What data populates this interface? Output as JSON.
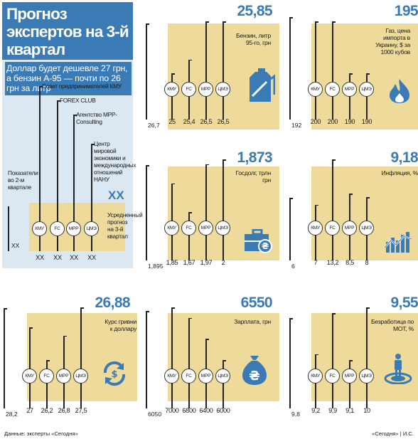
{
  "legend": {
    "title": "Прогноз экспертов на 3-й квартал",
    "subtitle": "Доллар будет дешевле 27 грн, а бензин А-95 — почти по 26 грн за литр",
    "sources": [
      {
        "code": "КМУ",
        "name": "Совет предпринимателей КМУ"
      },
      {
        "code": "FC",
        "name": "FOREX CLUB"
      },
      {
        "code": "MPP",
        "name": "Агентство MPP-Consulting"
      },
      {
        "code": "ЦМЭ",
        "name": "Центр мировой экономики и международных отношений НАНУ"
      }
    ],
    "prev_label": "Показатели во 2-м квартале",
    "prev_value": "XX",
    "avg_value": "XX",
    "avg_note": "Усредненный прогноз на 3-й квартал",
    "values": [
      "XX",
      "XX",
      "XX",
      "XX"
    ]
  },
  "chart_data": [
    {
      "type": "lollipop",
      "title": "Бензин, литр 95-го, грн",
      "forecast": "25,85",
      "prev": "26,7",
      "icon": "fuel-canister-icon",
      "series": [
        {
          "name": "КМУ",
          "value": 25
        },
        {
          "name": "FC",
          "value": 25.4
        },
        {
          "name": "MPP",
          "value": 26.5
        },
        {
          "name": "ЦМЭ",
          "value": 26.5
        }
      ],
      "labels": [
        "25",
        "25,4",
        "26,5",
        "26,5"
      ]
    },
    {
      "type": "lollipop",
      "title": "Газ, цена импорта в Украину, $ за 1000 кубов",
      "forecast": "195",
      "prev": "192",
      "icon": "gas-flame-icon",
      "series": [
        {
          "name": "КМУ",
          "value": 200
        },
        {
          "name": "FC",
          "value": 200
        },
        {
          "name": "MPP",
          "value": 190
        },
        {
          "name": "ЦМЭ",
          "value": 190
        }
      ],
      "labels": [
        "200",
        "200",
        "190",
        "190"
      ]
    },
    {
      "type": "lollipop",
      "title": "Госдолг, трлн грн",
      "forecast": "1,873",
      "prev": "1,895",
      "icon": "briefcase-hryvnia-icon",
      "series": [
        {
          "name": "КМУ",
          "value": 1.85
        },
        {
          "name": "FC",
          "value": 1.67
        },
        {
          "name": "MPP",
          "value": 1.97
        },
        {
          "name": "ЦМЭ",
          "value": 2
        }
      ],
      "labels": [
        "1,85",
        "1,67",
        "1,97",
        "2"
      ]
    },
    {
      "type": "lollipop",
      "title": "Инфляция, %",
      "forecast": "9,18",
      "prev": "6",
      "icon": "inflation-chart-icon",
      "series": [
        {
          "name": "КМУ",
          "value": 7
        },
        {
          "name": "FC",
          "value": 13.2
        },
        {
          "name": "MPP",
          "value": 8.5
        },
        {
          "name": "ЦМЭ",
          "value": 8
        }
      ],
      "labels": [
        "7",
        "13,2",
        "8,5",
        "8"
      ]
    },
    {
      "type": "lollipop",
      "title": "Курс гривни к доллару",
      "forecast": "26,88",
      "prev": "28,2",
      "icon": "exchange-icon",
      "series": [
        {
          "name": "КМУ",
          "value": 27
        },
        {
          "name": "FC",
          "value": 26.2
        },
        {
          "name": "MPP",
          "value": 26.8
        },
        {
          "name": "ЦМЭ",
          "value": 27.5
        }
      ],
      "labels": [
        "27",
        "26,2",
        "26,8",
        "27,5"
      ]
    },
    {
      "type": "lollipop",
      "title": "Зарплата, грн",
      "forecast": "6550",
      "prev": "6050",
      "icon": "money-bag-icon",
      "series": [
        {
          "name": "КМУ",
          "value": 7000
        },
        {
          "name": "FC",
          "value": 6800
        },
        {
          "name": "MPP",
          "value": 6400
        },
        {
          "name": "ЦМЭ",
          "value": 6000
        }
      ],
      "labels": [
        "7000",
        "6800",
        "6400",
        "6000"
      ]
    },
    {
      "type": "lollipop",
      "title": "Безработица по МОТ, %",
      "forecast": "9,55",
      "prev": "9,8",
      "icon": "person-target-icon",
      "series": [
        {
          "name": "КМУ",
          "value": 9.2
        },
        {
          "name": "FC",
          "value": 9.9
        },
        {
          "name": "MPP",
          "value": 9.1
        },
        {
          "name": "ЦМЭ",
          "value": 10
        }
      ],
      "labels": [
        "9,2",
        "9,9",
        "9,1",
        "10"
      ]
    }
  ],
  "footer": {
    "left": "Данные: эксперты «Сегодня»",
    "right": "«Сегодня» | И.С."
  },
  "colors": {
    "accent": "#3a7ab5",
    "band": "#eedb9c",
    "legend_bg": "#dbe7f1"
  }
}
